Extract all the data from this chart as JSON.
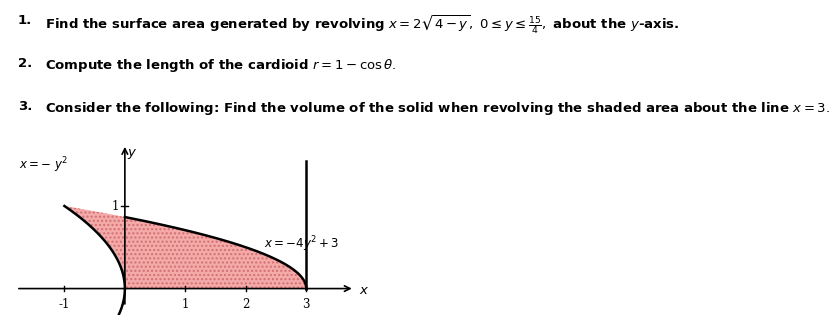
{
  "text_lines": [
    {
      "num": "1.",
      "text": "Find the surface area generated by revolving $x = 2\\sqrt{4-y},\\ 0 \\leq y \\leq \\frac{15}{4},$ about the $y$-axis."
    },
    {
      "num": "2.",
      "text": "Compute the length of the cardioid $r = 1 - \\cos\\theta.$"
    },
    {
      "num": "3.",
      "text": "Consider the following: Find the volume of the solid when revolving the shaded area about the line $x = 3.$"
    }
  ],
  "curve1_label": "$x = -\\ y^2$",
  "curve2_label": "$x = -4y^2 + 3$",
  "x_ticks": [
    -1,
    1,
    2,
    3
  ],
  "y_tick_val": 1,
  "y_tick_label": "1",
  "bg_color": "#ffffff",
  "shade_color": "#f5aaaa",
  "hatch_color": "#d07070",
  "curve_color": "#000000",
  "font_size_text": 9.5,
  "font_size_graph": 8.5
}
